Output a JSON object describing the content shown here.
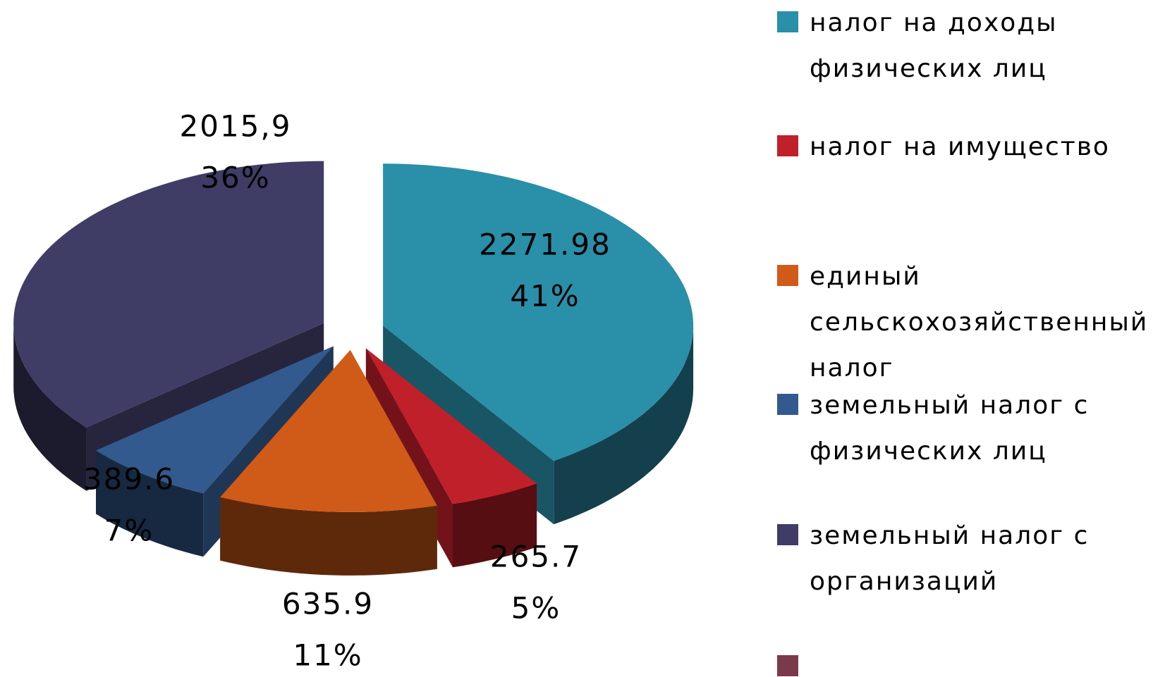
{
  "chart_data": {
    "type": "pie3d",
    "categories": [
      "налог на доходы физических лиц",
      "налог на имущество",
      "единый сельскохозяйственный налог",
      "земельный налог с физических лиц",
      "земельный налог с организаций",
      null
    ],
    "values": [
      2271.98,
      265.7,
      635.9,
      389.6,
      2015.9,
      null
    ],
    "value_labels": [
      "2271.98",
      "265.7",
      "635.9",
      "389.6",
      "2015,9",
      null
    ],
    "percent_labels": [
      "41%",
      "5%",
      "11%",
      "7%",
      "36%",
      null
    ],
    "colors": [
      "#2a8fa8",
      "#c0202a",
      "#d05a18",
      "#335a8e",
      "#3f3d66",
      "#7b3a4a"
    ]
  }
}
